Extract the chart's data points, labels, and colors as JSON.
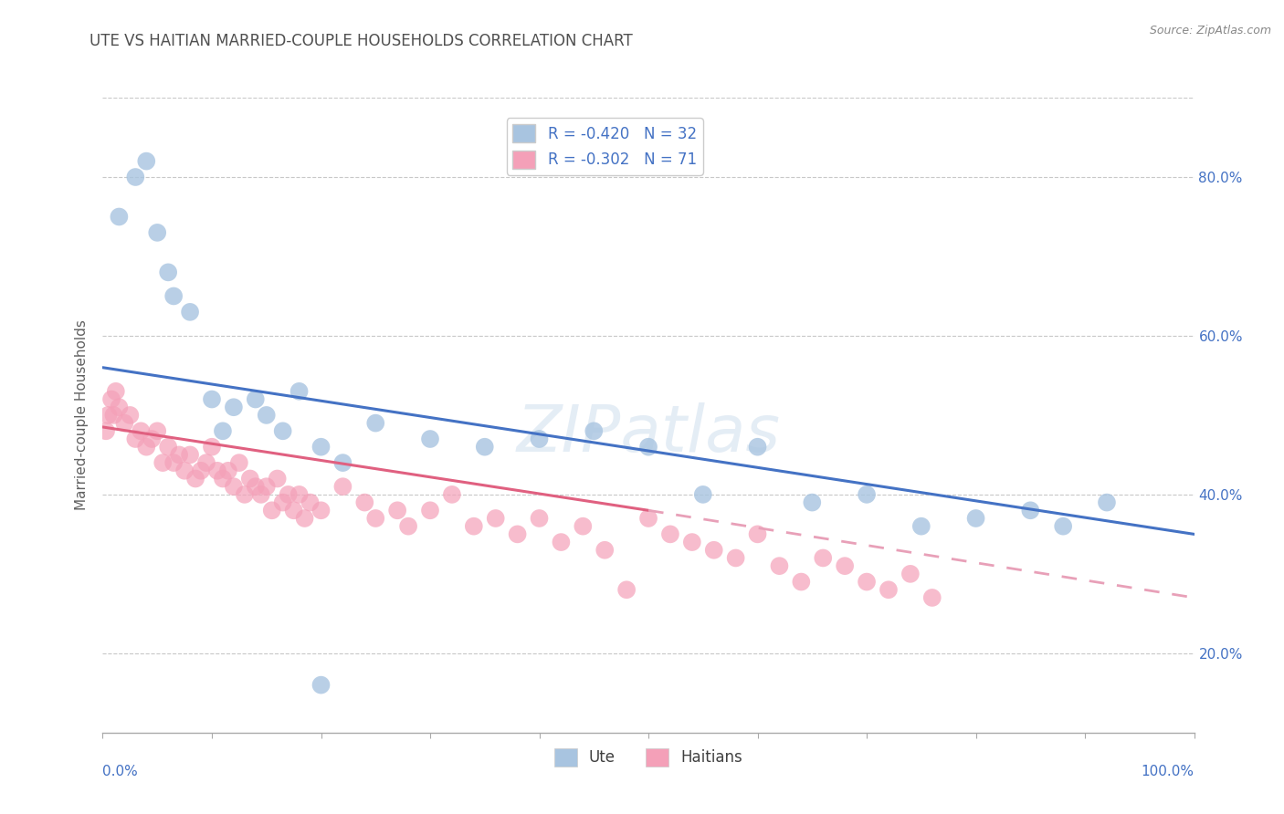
{
  "title": "UTE VS HAITIAN MARRIED-COUPLE HOUSEHOLDS CORRELATION CHART",
  "source": "Source: ZipAtlas.com",
  "ylabel": "Married-couple Households",
  "legend_r": [
    "R = -0.420",
    "R = -0.302"
  ],
  "legend_n": [
    "N = 32",
    "N = 71"
  ],
  "xlim": [
    0.0,
    100.0
  ],
  "ylim": [
    10.0,
    90.0
  ],
  "ute_color": "#a8c4e0",
  "haitian_color": "#f4a0b8",
  "blue_line_color": "#4472c4",
  "pink_line_color": "#e06080",
  "pink_dash_color": "#e8a0b8",
  "title_color": "#505050",
  "axis_label_color": "#707070",
  "tick_color": "#4472c4",
  "right_tick_color": "#4472c4",
  "grid_color": "#c8c8c8",
  "background_color": "#ffffff",
  "ute_x": [
    1.5,
    3.0,
    4.0,
    5.0,
    6.0,
    6.5,
    8.0,
    10.0,
    11.0,
    12.0,
    14.0,
    15.0,
    16.5,
    18.0,
    20.0,
    22.0,
    25.0,
    30.0,
    35.0,
    40.0,
    45.0,
    50.0,
    55.0,
    60.0,
    65.0,
    70.0,
    75.0,
    80.0,
    85.0,
    88.0,
    92.0,
    20.0
  ],
  "ute_y": [
    75.0,
    80.0,
    82.0,
    73.0,
    68.0,
    65.0,
    63.0,
    52.0,
    48.0,
    51.0,
    52.0,
    50.0,
    48.0,
    53.0,
    46.0,
    44.0,
    49.0,
    47.0,
    46.0,
    47.0,
    48.0,
    46.0,
    40.0,
    46.0,
    39.0,
    40.0,
    36.0,
    37.0,
    38.0,
    36.0,
    39.0,
    16.0
  ],
  "haitian_x": [
    0.3,
    0.5,
    0.8,
    1.0,
    1.2,
    1.5,
    2.0,
    2.5,
    3.0,
    3.5,
    4.0,
    4.5,
    5.0,
    5.5,
    6.0,
    6.5,
    7.0,
    7.5,
    8.0,
    8.5,
    9.0,
    9.5,
    10.0,
    10.5,
    11.0,
    11.5,
    12.0,
    12.5,
    13.0,
    13.5,
    14.0,
    14.5,
    15.0,
    15.5,
    16.0,
    16.5,
    17.0,
    17.5,
    18.0,
    18.5,
    19.0,
    20.0,
    22.0,
    24.0,
    25.0,
    27.0,
    28.0,
    30.0,
    32.0,
    34.0,
    36.0,
    38.0,
    40.0,
    42.0,
    44.0,
    46.0,
    48.0,
    50.0,
    52.0,
    54.0,
    56.0,
    58.0,
    60.0,
    62.0,
    64.0,
    66.0,
    68.0,
    70.0,
    72.0,
    74.0,
    76.0
  ],
  "haitian_y": [
    48.0,
    50.0,
    52.0,
    50.0,
    53.0,
    51.0,
    49.0,
    50.0,
    47.0,
    48.0,
    46.0,
    47.0,
    48.0,
    44.0,
    46.0,
    44.0,
    45.0,
    43.0,
    45.0,
    42.0,
    43.0,
    44.0,
    46.0,
    43.0,
    42.0,
    43.0,
    41.0,
    44.0,
    40.0,
    42.0,
    41.0,
    40.0,
    41.0,
    38.0,
    42.0,
    39.0,
    40.0,
    38.0,
    40.0,
    37.0,
    39.0,
    38.0,
    41.0,
    39.0,
    37.0,
    38.0,
    36.0,
    38.0,
    40.0,
    36.0,
    37.0,
    35.0,
    37.0,
    34.0,
    36.0,
    33.0,
    28.0,
    37.0,
    35.0,
    34.0,
    33.0,
    32.0,
    35.0,
    31.0,
    29.0,
    32.0,
    31.0,
    29.0,
    28.0,
    30.0,
    27.0
  ],
  "ute_line_x0": 0.0,
  "ute_line_y0": 56.0,
  "ute_line_x1": 100.0,
  "ute_line_y1": 35.0,
  "haitian_solid_x0": 0.0,
  "haitian_solid_y0": 48.5,
  "haitian_solid_x1": 50.0,
  "haitian_solid_y1": 38.0,
  "haitian_dash_x0": 50.0,
  "haitian_dash_y0": 38.0,
  "haitian_dash_x1": 100.0,
  "haitian_dash_y1": 27.0,
  "marker_size": 200,
  "title_fontsize": 12,
  "axis_label_fontsize": 11,
  "tick_fontsize": 11,
  "legend_fontsize": 12,
  "yticks": [
    20,
    40,
    60,
    80
  ],
  "xtick_labels_show": [
    0,
    100
  ],
  "minor_xticks": [
    10,
    20,
    30,
    40,
    50,
    60,
    70,
    80,
    90
  ]
}
